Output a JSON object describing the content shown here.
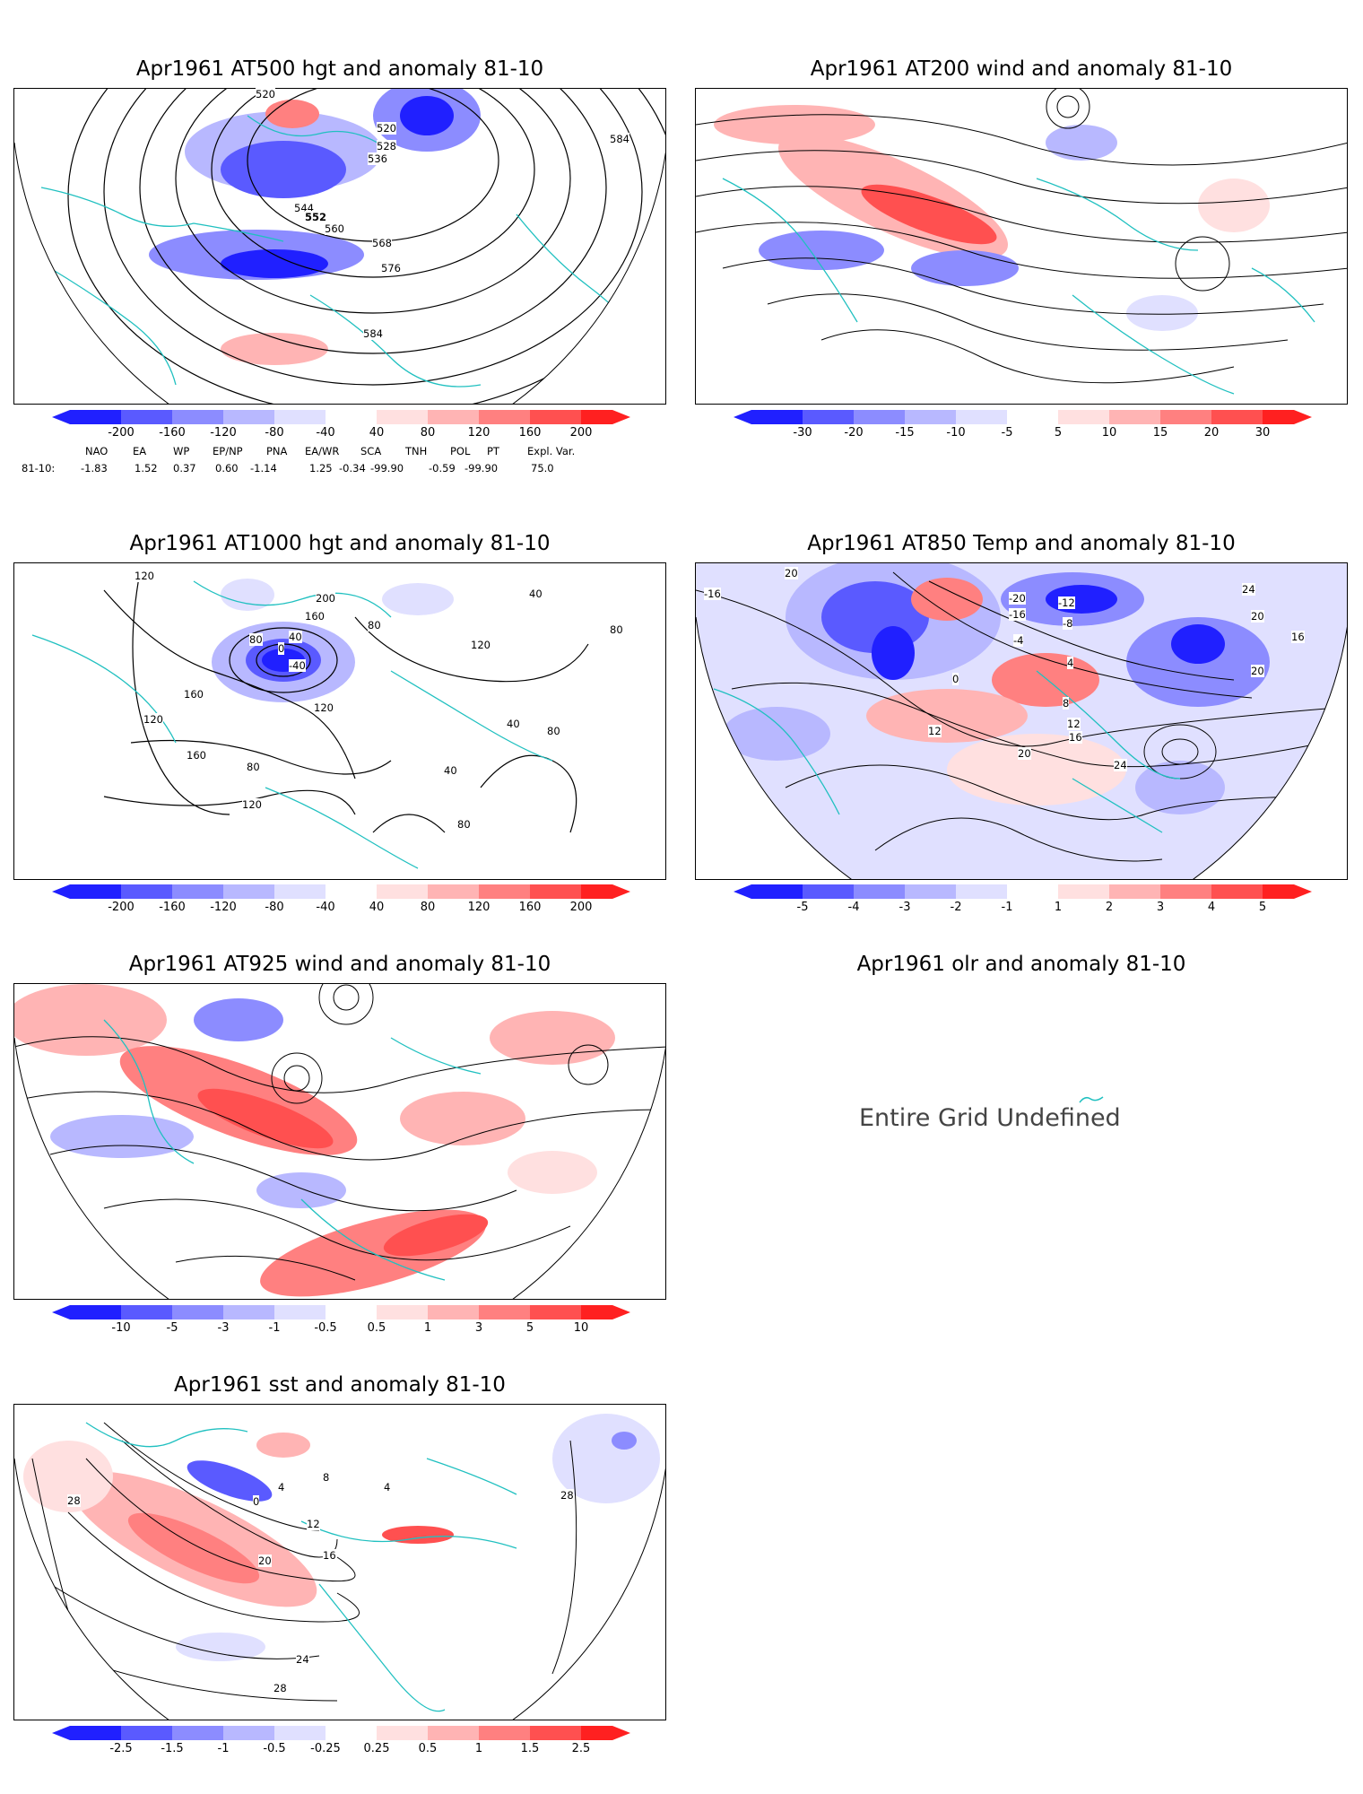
{
  "panels": {
    "at500": {
      "title": "Apr1961 AT500 hgt and anomaly 81-10",
      "contour_labels": [
        "520",
        "528",
        "536",
        "544",
        "552",
        "560",
        "568",
        "576",
        "584",
        "584",
        "520"
      ],
      "colorbar": [
        "-200",
        "-160",
        "-120",
        "-80",
        "-40",
        "40",
        "80",
        "120",
        "160",
        "200"
      ]
    },
    "at200": {
      "title": "Apr1961 AT200 wind and anomaly 81-10",
      "colorbar": [
        "-30",
        "-20",
        "-15",
        "-10",
        "-5",
        "5",
        "10",
        "15",
        "20",
        "30"
      ]
    },
    "at1000": {
      "title": "Apr1961 AT1000 hgt and anomaly 81-10",
      "contour_labels": [
        "120",
        "160",
        "200",
        "80",
        "40",
        "0",
        "-40",
        "120",
        "160",
        "120",
        "80",
        "40",
        "80",
        "40",
        "80",
        "120",
        "40",
        "80",
        "160",
        "120",
        "80"
      ],
      "colorbar": [
        "-200",
        "-160",
        "-120",
        "-80",
        "-40",
        "40",
        "80",
        "120",
        "160",
        "200"
      ]
    },
    "at850": {
      "title": "Apr1961 AT850 Temp and anomaly 81-10",
      "contour_labels": [
        "-16",
        "20",
        "-20",
        "-16",
        "-12",
        "-8",
        "-4",
        "0",
        "4",
        "8",
        "12",
        "12",
        "16",
        "20",
        "20",
        "24",
        "24",
        "20",
        "16"
      ],
      "colorbar": [
        "-5",
        "-4",
        "-3",
        "-2",
        "-1",
        "1",
        "2",
        "3",
        "4",
        "5"
      ]
    },
    "at925": {
      "title": "Apr1961 AT925 wind and anomaly 81-10",
      "colorbar": [
        "-10",
        "-5",
        "-3",
        "-1",
        "-0.5",
        "0.5",
        "1",
        "3",
        "5",
        "10"
      ]
    },
    "olr": {
      "title": "Apr1961 olr and anomaly 81-10",
      "message": "Entire Grid Undefined"
    },
    "sst": {
      "title": "Apr1961 sst and anomaly 81-10",
      "contour_labels": [
        "28",
        "4",
        "0",
        "8",
        "12",
        "16",
        "20",
        "24",
        "28",
        "28",
        "4"
      ],
      "colorbar": [
        "-2.5",
        "-1.5",
        "-1",
        "-0.5",
        "-0.25",
        "0.25",
        "0.5",
        "1",
        "1.5",
        "2.5"
      ]
    }
  },
  "indices": {
    "headers": [
      "NAO",
      "EA",
      "WP",
      "EP/NP",
      "PNA",
      "EA/WR",
      "SCA",
      "TNH",
      "POL",
      "PT",
      "Expl. Var."
    ],
    "row_label": "81-10:",
    "values": [
      "-1.83",
      "1.52",
      "0.37",
      "0.60",
      "-1.14",
      "1.25",
      "-0.34",
      "-99.90",
      "-0.59",
      "-99.90",
      "75.0"
    ]
  },
  "colors": {
    "blue_scale": [
      "#2020ff",
      "#5a5aff",
      "#8c8cff",
      "#b8b8ff",
      "#e0e0ff"
    ],
    "red_scale": [
      "#ffe0e0",
      "#ffb4b4",
      "#ff8080",
      "#ff5050",
      "#ff2020"
    ],
    "coast": "#20c0c0",
    "contour": "#000000",
    "grid": "#999999"
  }
}
